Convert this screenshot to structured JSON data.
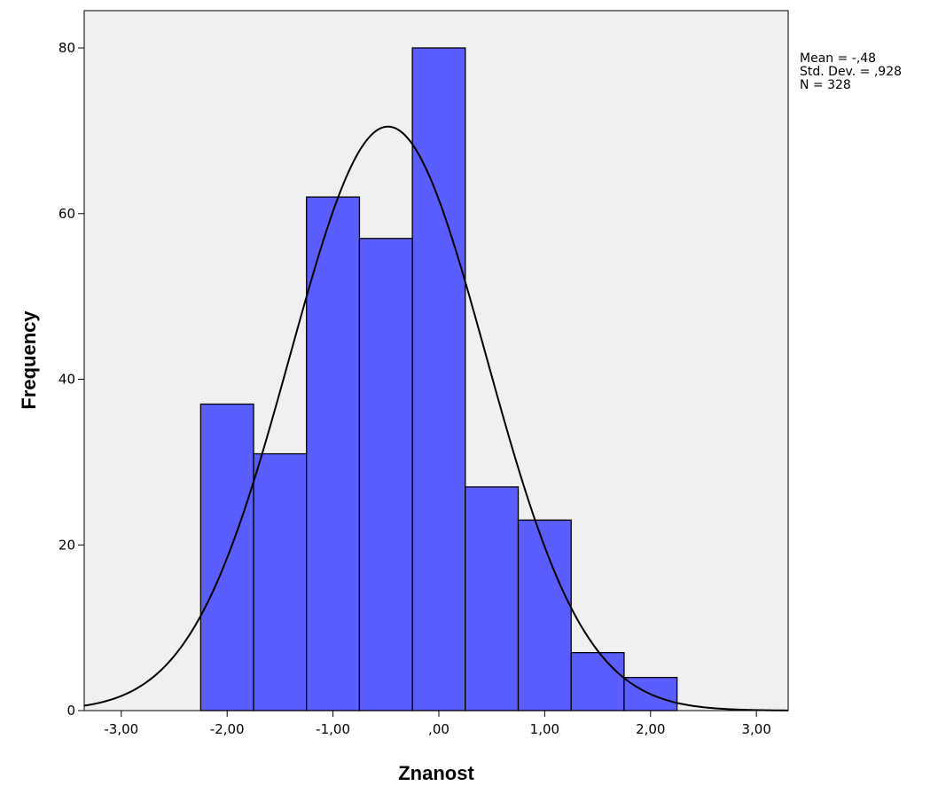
{
  "chart_data": {
    "type": "bar",
    "subtype": "histogram",
    "xlabel": "Znanost",
    "ylabel": "Frequency",
    "bins": [
      {
        "start": -2.25,
        "end": -1.75,
        "count": 37
      },
      {
        "start": -1.75,
        "end": -1.25,
        "count": 31
      },
      {
        "start": -1.25,
        "end": -0.75,
        "count": 62
      },
      {
        "start": -0.75,
        "end": -0.25,
        "count": 57
      },
      {
        "start": -0.25,
        "end": 0.25,
        "count": 80
      },
      {
        "start": 0.25,
        "end": 0.75,
        "count": 27
      },
      {
        "start": 0.75,
        "end": 1.25,
        "count": 23
      },
      {
        "start": 1.25,
        "end": 1.75,
        "count": 7
      },
      {
        "start": 1.75,
        "end": 2.25,
        "count": 4
      }
    ],
    "xlim": [
      -3.35,
      3.3
    ],
    "ylim": [
      0,
      84.5
    ],
    "x_ticks": [
      {
        "value": -3,
        "label": "-3,00"
      },
      {
        "value": -2,
        "label": "-2,00"
      },
      {
        "value": -1,
        "label": "-1,00"
      },
      {
        "value": 0,
        "label": ",00"
      },
      {
        "value": 1,
        "label": "1,00"
      },
      {
        "value": 2,
        "label": "2,00"
      },
      {
        "value": 3,
        "label": "3,00"
      }
    ],
    "y_ticks": [
      {
        "value": 0,
        "label": "0"
      },
      {
        "value": 20,
        "label": "20"
      },
      {
        "value": 40,
        "label": "40"
      },
      {
        "value": 60,
        "label": "60"
      },
      {
        "value": 80,
        "label": "80"
      }
    ],
    "normal_curve": {
      "mean": -0.48,
      "std": 0.928,
      "n": 328,
      "bin_width": 0.5
    },
    "stats_lines": [
      "Mean = -,48",
      "Std. Dev. = ,928",
      "N = 328"
    ],
    "legend_position": "top-right outside plot",
    "colors": {
      "bar_fill": "#5a5eff",
      "bar_stroke": "#000000",
      "plot_background": "#f0f0f0",
      "curve": "#000000"
    }
  }
}
